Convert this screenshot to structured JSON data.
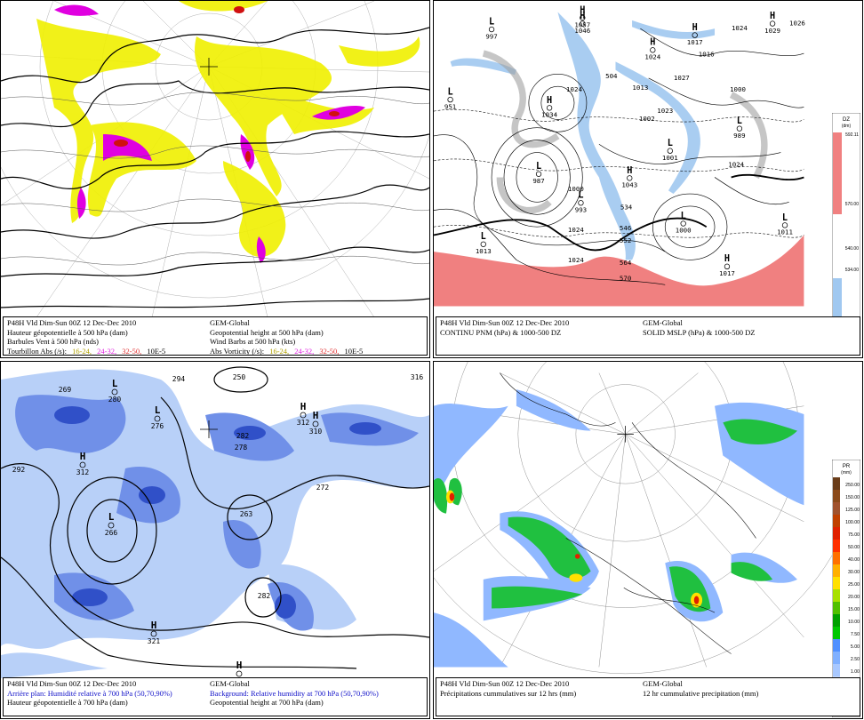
{
  "panels": {
    "vorticity": {
      "caption_fr": {
        "run": "P48H Vld Dim-Sun 00Z 12 Dec-Dec 2010",
        "line2": "Hauteur géopotentielle à 500 hPa (dam)",
        "line3": "Barbules Vent à 500 hPa (nds)",
        "line4_label": "Tourbillon Abs (/s):"
      },
      "caption_en": {
        "model": "GEM-Global",
        "line2": "Geopotential height at 500 hPa (dam)",
        "line3": "Wind Barbs at 500 hPa  (kts)",
        "line4_label": "Abs Vorticity (/s):"
      },
      "vort_ranges": [
        "16-24,",
        "24-32,",
        "32-50,",
        "10E-5"
      ],
      "vort_colors": [
        "#c8c800",
        "#e020e0",
        "#e03030",
        "#000000"
      ]
    },
    "mslp": {
      "caption_fr": {
        "run": "P48H Vld Dim-Sun 00Z 12 Dec-Dec 2010",
        "line2": "CONTINU PNM  (hPa) & 1000-500 DZ"
      },
      "caption_en": {
        "model": "GEM-Global",
        "line2": "SOLID   MSLP (hPa) & 1000-500 DZ"
      },
      "colorbar": {
        "title": "DZ",
        "unit": "(dm)",
        "ticks": [
          "592.11",
          "570.00",
          "540.00",
          "534.00",
          "516.00",
          "510.00"
        ]
      },
      "centers": [
        {
          "t": "L",
          "v": "997"
        },
        {
          "t": "H",
          "v": "1046"
        },
        {
          "t": "H",
          "v": "1057"
        },
        {
          "t": "H",
          "v": "1029"
        },
        {
          "t": "",
          "v": "1026"
        },
        {
          "t": "",
          "v": "1024"
        },
        {
          "t": "H",
          "v": "1017"
        },
        {
          "t": "H",
          "v": "1024"
        },
        {
          "t": "",
          "v": "1016"
        },
        {
          "t": "",
          "v": "1027"
        },
        {
          "t": "L",
          "v": "951"
        },
        {
          "t": "H",
          "v": "1034"
        },
        {
          "t": "",
          "v": "1024"
        },
        {
          "t": "",
          "v": "504"
        },
        {
          "t": "",
          "v": "1013"
        },
        {
          "t": "",
          "v": "1002"
        },
        {
          "t": "",
          "v": "1023"
        },
        {
          "t": "",
          "v": "1000"
        },
        {
          "t": "L",
          "v": "989"
        },
        {
          "t": "L",
          "v": "987"
        },
        {
          "t": "H",
          "v": "1043"
        },
        {
          "t": "L",
          "v": "1001"
        },
        {
          "t": "",
          "v": "1024"
        },
        {
          "t": "",
          "v": "1000"
        },
        {
          "t": "L",
          "v": "993"
        },
        {
          "t": "",
          "v": "1024"
        },
        {
          "t": "L",
          "v": "1000"
        },
        {
          "t": "L",
          "v": "1011"
        },
        {
          "t": "L",
          "v": "1013"
        },
        {
          "t": "",
          "v": "1024"
        },
        {
          "t": "H",
          "v": "1017"
        },
        {
          "t": "",
          "v": "534"
        },
        {
          "t": "",
          "v": "546"
        },
        {
          "t": "",
          "v": "552"
        },
        {
          "t": "",
          "v": "564"
        },
        {
          "t": "",
          "v": "570"
        }
      ]
    },
    "humidity": {
      "caption_fr": {
        "run": "P48H Vld Dim-Sun 00Z 12 Dec-Dec 2010",
        "line2": "Arrière plan: Humidité relative à 700 hPa (50,70,90%)",
        "line3": "Hauteur géopotentielle à 700 hPa (dam)"
      },
      "caption_en": {
        "model": "GEM-Global",
        "line2": "Background: Relative humidity at 700 hPa (50,70,90%)",
        "line3": "Geopotential height at 700 hPa (dam)"
      },
      "centers": [
        {
          "t": "",
          "v": "269"
        },
        {
          "t": "L",
          "v": "280"
        },
        {
          "t": "",
          "v": "294"
        },
        {
          "t": "",
          "v": "250"
        },
        {
          "t": "",
          "v": "316"
        },
        {
          "t": "L",
          "v": "276"
        },
        {
          "t": "H",
          "v": "312"
        },
        {
          "t": "",
          "v": "282"
        },
        {
          "t": "",
          "v": "278"
        },
        {
          "t": "H",
          "v": "310"
        },
        {
          "t": "",
          "v": "292"
        },
        {
          "t": "H",
          "v": "312"
        },
        {
          "t": "",
          "v": "272"
        },
        {
          "t": "L",
          "v": "266"
        },
        {
          "t": "",
          "v": "263"
        },
        {
          "t": "",
          "v": "282"
        },
        {
          "t": "H",
          "v": "321"
        },
        {
          "t": "H",
          "v": ""
        }
      ]
    },
    "precip": {
      "caption_fr": {
        "run": "P48H Vld Dim-Sun 00Z 12 Dec-Dec 2010",
        "line2": "Précipitations cummulatives sur 12 hrs (mm)"
      },
      "caption_en": {
        "model": "GEM-Global",
        "line2": "12 hr cummulative precipitation       (mm)"
      },
      "colorbar": {
        "title": "PR",
        "unit": "(mm)",
        "ticks": [
          "250.00",
          "150.00",
          "125.00",
          "100.00",
          "75.00",
          "50.00",
          "40.00",
          "30.00",
          "25.00",
          "20.00",
          "15.00",
          "10.00",
          "7.50",
          "5.00",
          "2.50",
          "1.00",
          "0.50",
          "0.25",
          "0.00"
        ],
        "colors": [
          "#6a3d1a",
          "#8b4a1a",
          "#a0522d",
          "#c04000",
          "#e02000",
          "#ff3000",
          "#ff7000",
          "#ffb000",
          "#ffe000",
          "#a8e000",
          "#50c000",
          "#00a000",
          "#00c800",
          "#5090ff",
          "#80b0ff",
          "#a8c8ff",
          "#c8dcff",
          "#e0ecff",
          "#ffffff"
        ]
      }
    }
  },
  "colors": {
    "contour": "#000000",
    "vort_yellow": "#f0f000",
    "vort_magenta": "#e000e0",
    "vort_red": "#d01010",
    "mslp_thickness_red": "#f08080",
    "mslp_thickness_blue": "#a0c8f0",
    "mslp_gray": "#a0a0a0",
    "rh_light": "#b8d0f8",
    "rh_mid": "#7090e8",
    "rh_dark": "#3050c8",
    "precip_green": "#20c040",
    "precip_blue": "#90b8ff"
  }
}
